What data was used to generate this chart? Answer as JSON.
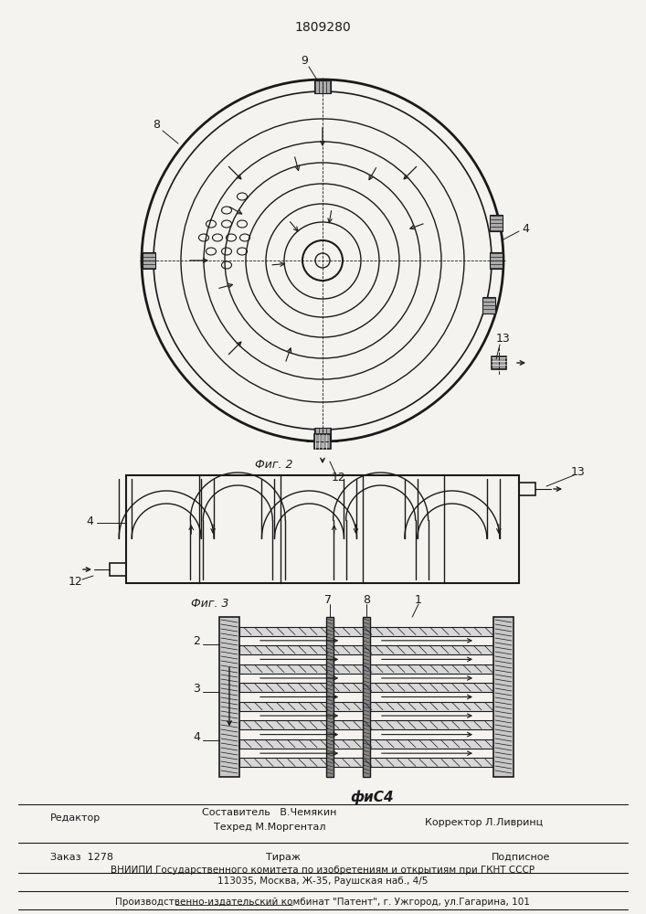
{
  "title": "1809280",
  "bg_color": "#f5f3ef",
  "line_color": "#1a1a1a",
  "fig1_label": "Фиг. 2",
  "fig2_label": "Фиг. 3",
  "fig3_label": "фиС4",
  "label_8": "8",
  "label_9": "9",
  "label_4": "4",
  "label_13": "13",
  "label_12": "12",
  "label_1": "1",
  "label_2": "2",
  "label_3": "3",
  "label_7": "7",
  "footer_editor": "Редактор",
  "footer_comp": "Составитель   В.Чемякин",
  "footer_tech": "Техред М.Моргентал",
  "footer_corr": "Корректор Л.Ливринц",
  "footer_order": "Заказ  1278",
  "footer_print": "Тираж",
  "footer_sub": "Подписное",
  "footer_vniip": "ВНИИПИ Государственного комитета по изобретениям и открытиям при ГКНТ СССР",
  "footer_addr": "113035, Москва, Ж-35, Раушская наб., 4/5",
  "footer_prod": "Производственно-издательский комбинат \"Патент\", г. Ужгород, ул.Гагарина, 101"
}
